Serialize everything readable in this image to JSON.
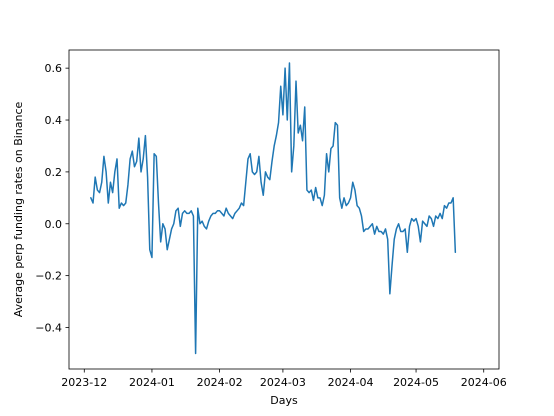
{
  "chart_data": {
    "type": "line",
    "title": "",
    "xlabel": "Days",
    "ylabel": "Average perp funding rates on Binance",
    "x_range": [
      "2023-11-24",
      "2024-06-08"
    ],
    "ylim": [
      -0.56,
      0.67
    ],
    "grid": false,
    "legend": "none",
    "line_color": "#1f77b4",
    "x_ticks": [
      {
        "date": "2023-12-01",
        "label": "2023-12"
      },
      {
        "date": "2024-01-01",
        "label": "2024-01"
      },
      {
        "date": "2024-02-01",
        "label": "2024-02"
      },
      {
        "date": "2024-03-01",
        "label": "2024-03"
      },
      {
        "date": "2024-04-01",
        "label": "2024-04"
      },
      {
        "date": "2024-05-01",
        "label": "2024-05"
      },
      {
        "date": "2024-06-01",
        "label": "2024-06"
      }
    ],
    "y_ticks": [
      {
        "value": -0.4,
        "label": "−0.4"
      },
      {
        "value": -0.2,
        "label": "−0.2"
      },
      {
        "value": 0.0,
        "label": "0.0"
      },
      {
        "value": 0.2,
        "label": "0.2"
      },
      {
        "value": 0.4,
        "label": "0.4"
      },
      {
        "value": 0.6,
        "label": "0.6"
      }
    ],
    "series": [
      {
        "points": [
          [
            "2023-12-04",
            0.1
          ],
          [
            "2023-12-05",
            0.08
          ],
          [
            "2023-12-06",
            0.18
          ],
          [
            "2023-12-07",
            0.13
          ],
          [
            "2023-12-08",
            0.12
          ],
          [
            "2023-12-09",
            0.16
          ],
          [
            "2023-12-10",
            0.26
          ],
          [
            "2023-12-11",
            0.2
          ],
          [
            "2023-12-12",
            0.08
          ],
          [
            "2023-12-13",
            0.16
          ],
          [
            "2023-12-14",
            0.12
          ],
          [
            "2023-12-15",
            0.2
          ],
          [
            "2023-12-16",
            0.25
          ],
          [
            "2023-12-17",
            0.06
          ],
          [
            "2023-12-18",
            0.08
          ],
          [
            "2023-12-19",
            0.07
          ],
          [
            "2023-12-20",
            0.08
          ],
          [
            "2023-12-21",
            0.15
          ],
          [
            "2023-12-22",
            0.25
          ],
          [
            "2023-12-23",
            0.28
          ],
          [
            "2023-12-24",
            0.22
          ],
          [
            "2023-12-25",
            0.24
          ],
          [
            "2023-12-26",
            0.33
          ],
          [
            "2023-12-27",
            0.2
          ],
          [
            "2023-12-28",
            0.25
          ],
          [
            "2023-12-29",
            0.34
          ],
          [
            "2023-12-30",
            0.18
          ],
          [
            "2023-12-31",
            -0.1
          ],
          [
            "2024-01-01",
            -0.13
          ],
          [
            "2024-01-02",
            0.27
          ],
          [
            "2024-01-03",
            0.26
          ],
          [
            "2024-01-04",
            0.08
          ],
          [
            "2024-01-05",
            -0.07
          ],
          [
            "2024-01-06",
            0.0
          ],
          [
            "2024-01-07",
            -0.02
          ],
          [
            "2024-01-08",
            -0.1
          ],
          [
            "2024-01-09",
            -0.06
          ],
          [
            "2024-01-10",
            -0.02
          ],
          [
            "2024-01-11",
            0.0
          ],
          [
            "2024-01-12",
            0.05
          ],
          [
            "2024-01-13",
            0.06
          ],
          [
            "2024-01-14",
            -0.01
          ],
          [
            "2024-01-15",
            0.04
          ],
          [
            "2024-01-16",
            0.05
          ],
          [
            "2024-01-17",
            0.04
          ],
          [
            "2024-01-18",
            0.04
          ],
          [
            "2024-01-19",
            0.05
          ],
          [
            "2024-01-20",
            0.03
          ],
          [
            "2024-01-21",
            -0.5
          ],
          [
            "2024-01-22",
            0.06
          ],
          [
            "2024-01-23",
            0.0
          ],
          [
            "2024-01-24",
            0.01
          ],
          [
            "2024-01-25",
            -0.01
          ],
          [
            "2024-01-26",
            -0.02
          ],
          [
            "2024-01-27",
            0.01
          ],
          [
            "2024-01-28",
            0.03
          ],
          [
            "2024-01-29",
            0.04
          ],
          [
            "2024-01-30",
            0.04
          ],
          [
            "2024-01-31",
            0.05
          ],
          [
            "2024-02-01",
            0.05
          ],
          [
            "2024-02-02",
            0.04
          ],
          [
            "2024-02-03",
            0.03
          ],
          [
            "2024-02-04",
            0.06
          ],
          [
            "2024-02-05",
            0.04
          ],
          [
            "2024-02-06",
            0.03
          ],
          [
            "2024-02-07",
            0.02
          ],
          [
            "2024-02-08",
            0.04
          ],
          [
            "2024-02-09",
            0.05
          ],
          [
            "2024-02-10",
            0.06
          ],
          [
            "2024-02-11",
            0.08
          ],
          [
            "2024-02-12",
            0.07
          ],
          [
            "2024-02-13",
            0.16
          ],
          [
            "2024-02-14",
            0.25
          ],
          [
            "2024-02-15",
            0.27
          ],
          [
            "2024-02-16",
            0.2
          ],
          [
            "2024-02-17",
            0.19
          ],
          [
            "2024-02-18",
            0.2
          ],
          [
            "2024-02-19",
            0.26
          ],
          [
            "2024-02-20",
            0.16
          ],
          [
            "2024-02-21",
            0.11
          ],
          [
            "2024-02-22",
            0.2
          ],
          [
            "2024-02-23",
            0.18
          ],
          [
            "2024-02-24",
            0.17
          ],
          [
            "2024-02-25",
            0.24
          ],
          [
            "2024-02-26",
            0.3
          ],
          [
            "2024-02-27",
            0.34
          ],
          [
            "2024-02-28",
            0.39
          ],
          [
            "2024-02-29",
            0.53
          ],
          [
            "2024-03-01",
            0.42
          ],
          [
            "2024-03-02",
            0.6
          ],
          [
            "2024-03-03",
            0.4
          ],
          [
            "2024-03-04",
            0.62
          ],
          [
            "2024-03-05",
            0.2
          ],
          [
            "2024-03-06",
            0.3
          ],
          [
            "2024-03-07",
            0.55
          ],
          [
            "2024-03-08",
            0.35
          ],
          [
            "2024-03-09",
            0.38
          ],
          [
            "2024-03-10",
            0.32
          ],
          [
            "2024-03-11",
            0.45
          ],
          [
            "2024-03-12",
            0.13
          ],
          [
            "2024-03-13",
            0.12
          ],
          [
            "2024-03-14",
            0.13
          ],
          [
            "2024-03-15",
            0.09
          ],
          [
            "2024-03-16",
            0.14
          ],
          [
            "2024-03-17",
            0.1
          ],
          [
            "2024-03-18",
            0.1
          ],
          [
            "2024-03-19",
            0.07
          ],
          [
            "2024-03-20",
            0.11
          ],
          [
            "2024-03-21",
            0.27
          ],
          [
            "2024-03-22",
            0.2
          ],
          [
            "2024-03-23",
            0.29
          ],
          [
            "2024-03-24",
            0.3
          ],
          [
            "2024-03-25",
            0.39
          ],
          [
            "2024-03-26",
            0.38
          ],
          [
            "2024-03-27",
            0.1
          ],
          [
            "2024-03-28",
            0.06
          ],
          [
            "2024-03-29",
            0.1
          ],
          [
            "2024-03-30",
            0.07
          ],
          [
            "2024-03-31",
            0.08
          ],
          [
            "2024-04-01",
            0.1
          ],
          [
            "2024-04-02",
            0.16
          ],
          [
            "2024-04-03",
            0.13
          ],
          [
            "2024-04-04",
            0.07
          ],
          [
            "2024-04-05",
            0.06
          ],
          [
            "2024-04-06",
            0.03
          ],
          [
            "2024-04-07",
            -0.03
          ],
          [
            "2024-04-08",
            -0.02
          ],
          [
            "2024-04-09",
            -0.02
          ],
          [
            "2024-04-10",
            -0.01
          ],
          [
            "2024-04-11",
            0.0
          ],
          [
            "2024-04-12",
            -0.04
          ],
          [
            "2024-04-13",
            -0.01
          ],
          [
            "2024-04-14",
            -0.03
          ],
          [
            "2024-04-15",
            -0.03
          ],
          [
            "2024-04-16",
            -0.04
          ],
          [
            "2024-04-17",
            -0.02
          ],
          [
            "2024-04-18",
            -0.06
          ],
          [
            "2024-04-19",
            -0.27
          ],
          [
            "2024-04-20",
            -0.16
          ],
          [
            "2024-04-21",
            -0.06
          ],
          [
            "2024-04-22",
            -0.02
          ],
          [
            "2024-04-23",
            0.0
          ],
          [
            "2024-04-24",
            -0.03
          ],
          [
            "2024-04-25",
            -0.03
          ],
          [
            "2024-04-26",
            -0.02
          ],
          [
            "2024-04-27",
            -0.11
          ],
          [
            "2024-04-28",
            -0.01
          ],
          [
            "2024-04-29",
            0.02
          ],
          [
            "2024-04-30",
            0.01
          ],
          [
            "2024-05-01",
            0.02
          ],
          [
            "2024-05-02",
            -0.01
          ],
          [
            "2024-05-03",
            -0.07
          ],
          [
            "2024-05-04",
            0.01
          ],
          [
            "2024-05-05",
            0.0
          ],
          [
            "2024-05-06",
            -0.01
          ],
          [
            "2024-05-07",
            0.03
          ],
          [
            "2024-05-08",
            0.02
          ],
          [
            "2024-05-09",
            -0.01
          ],
          [
            "2024-05-10",
            0.03
          ],
          [
            "2024-05-11",
            0.02
          ],
          [
            "2024-05-12",
            0.04
          ],
          [
            "2024-05-13",
            0.02
          ],
          [
            "2024-05-14",
            0.07
          ],
          [
            "2024-05-15",
            0.06
          ],
          [
            "2024-05-16",
            0.08
          ],
          [
            "2024-05-17",
            0.08
          ],
          [
            "2024-05-18",
            0.1
          ],
          [
            "2024-05-19",
            -0.11
          ]
        ]
      }
    ]
  }
}
